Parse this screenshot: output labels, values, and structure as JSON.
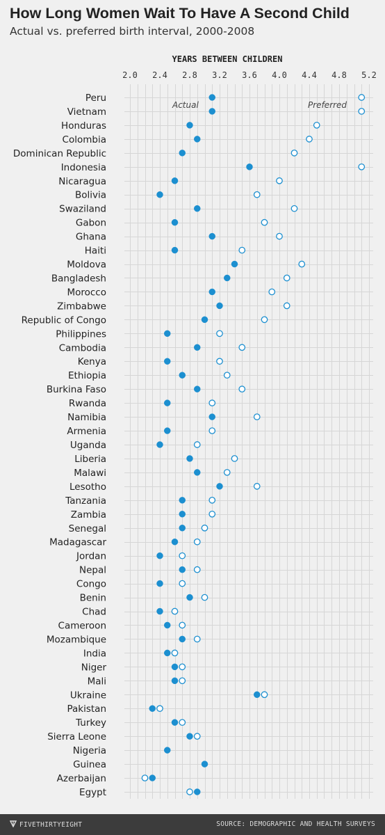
{
  "title": "How Long Women Wait To Have A Second Child",
  "subtitle": "Actual vs. preferred birth interval, 2000-2008",
  "footer": {
    "brand": "FIVETHIRTYEIGHT",
    "source": "SOURCE: DEMOGRAPHIC AND HEALTH SURVEYS"
  },
  "colors": {
    "accent": "#1c8fd0",
    "grid": "#d6d6d6",
    "background": "#f0f0f0"
  },
  "chart_data": {
    "type": "dot-plot",
    "xlabel": "YEARS BETWEEN CHILDREN",
    "xlim": [
      2.0,
      5.2
    ],
    "xticks": [
      "2.0",
      "2.4",
      "2.8",
      "3.2",
      "3.6",
      "4.0",
      "4.4",
      "4.8",
      "5.2"
    ],
    "tick_values": [
      2.0,
      2.4,
      2.8,
      3.2,
      3.6,
      4.0,
      4.4,
      4.8,
      5.2
    ],
    "grid": true,
    "series": [
      {
        "name": "Actual",
        "marker": "filled"
      },
      {
        "name": "Preferred",
        "marker": "open"
      }
    ],
    "categories": [
      "Peru",
      "Vietnam",
      "Honduras",
      "Colombia",
      "Dominican Republic",
      "Indonesia",
      "Nicaragua",
      "Bolivia",
      "Swaziland",
      "Gabon",
      "Ghana",
      "Haiti",
      "Moldova",
      "Bangladesh",
      "Morocco",
      "Zimbabwe",
      "Republic of Congo",
      "Philippines",
      "Cambodia",
      "Kenya",
      "Ethiopia",
      "Burkina Faso",
      "Rwanda",
      "Namibia",
      "Armenia",
      "Uganda",
      "Liberia",
      "Malawi",
      "Lesotho",
      "Tanzania",
      "Zambia",
      "Senegal",
      "Madagascar",
      "Jordan",
      "Nepal",
      "Congo",
      "Benin",
      "Chad",
      "Cameroon",
      "Mozambique",
      "India",
      "Niger",
      "Mali",
      "Ukraine",
      "Pakistan",
      "Turkey",
      "Sierra Leone",
      "Nigeria",
      "Guinea",
      "Azerbaijan",
      "Egypt"
    ],
    "actual": [
      3.1,
      3.1,
      2.8,
      2.9,
      2.7,
      3.6,
      2.6,
      2.4,
      2.9,
      2.6,
      3.1,
      2.6,
      3.4,
      3.3,
      3.1,
      3.2,
      3.0,
      2.5,
      2.9,
      2.5,
      2.7,
      2.9,
      2.5,
      3.1,
      2.5,
      2.4,
      2.8,
      2.9,
      3.2,
      2.7,
      2.7,
      2.7,
      2.6,
      2.4,
      2.7,
      2.4,
      2.8,
      2.4,
      2.5,
      2.7,
      2.5,
      2.6,
      2.6,
      3.7,
      2.3,
      2.6,
      2.8,
      2.5,
      3.0,
      2.3,
      2.9
    ],
    "preferred": [
      5.1,
      5.1,
      4.5,
      4.4,
      4.2,
      5.1,
      4.0,
      3.7,
      4.2,
      3.8,
      4.0,
      3.5,
      4.3,
      4.1,
      3.9,
      4.1,
      3.8,
      3.2,
      3.5,
      3.2,
      3.3,
      3.5,
      3.1,
      3.7,
      3.1,
      2.9,
      3.4,
      3.3,
      3.7,
      3.1,
      3.1,
      3.0,
      2.9,
      2.7,
      2.9,
      2.7,
      3.0,
      2.6,
      2.7,
      2.9,
      2.6,
      2.7,
      2.7,
      3.8,
      2.4,
      2.7,
      2.9,
      null,
      null,
      2.2,
      2.8
    ]
  }
}
